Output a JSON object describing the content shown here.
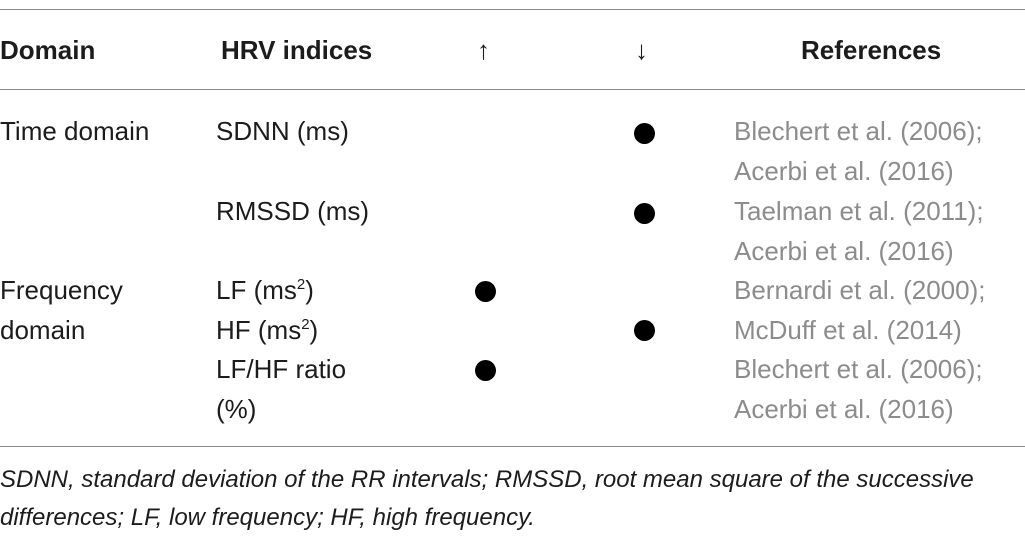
{
  "headers": {
    "domain": "Domain",
    "hrv": "HRV indices",
    "up": "↑",
    "down": "↓",
    "refs": "References"
  },
  "rows": [
    {
      "domain_lines": [
        "Time domain"
      ],
      "index_lines": [
        "SDNN (ms)"
      ],
      "up": false,
      "down": true,
      "ref_lines": [
        "Blechert et al. (2006);",
        "Acerbi et al. (2016)"
      ]
    },
    {
      "domain_lines": [],
      "index_lines": [
        "RMSSD (ms)"
      ],
      "up": false,
      "down": true,
      "ref_lines": [
        "Taelman et al. (2011);",
        "Acerbi et al. (2016)"
      ]
    },
    {
      "domain_lines": [
        "Frequency",
        "domain"
      ],
      "index_lines": [
        "LF (ms",
        "2",
        ")"
      ],
      "up": true,
      "down": false,
      "ref_lines": [
        "Bernardi et al. (2000);"
      ]
    },
    {
      "domain_lines": [],
      "index_lines": [
        "HF (ms",
        "2",
        ")"
      ],
      "up": false,
      "down": true,
      "ref_lines": [
        "McDuff et al. (2014)"
      ]
    },
    {
      "domain_lines": [],
      "index_lines": [
        "LF/HF ratio",
        "(%)"
      ],
      "up": true,
      "down": false,
      "ref_lines": [
        "Blechert et al. (2006);",
        "Acerbi et al. (2016)"
      ]
    }
  ],
  "footnote": "SDNN, standard deviation of the RR intervals; RMSSD, root mean square of the successive differences; LF, low frequency; HF, high frequency."
}
